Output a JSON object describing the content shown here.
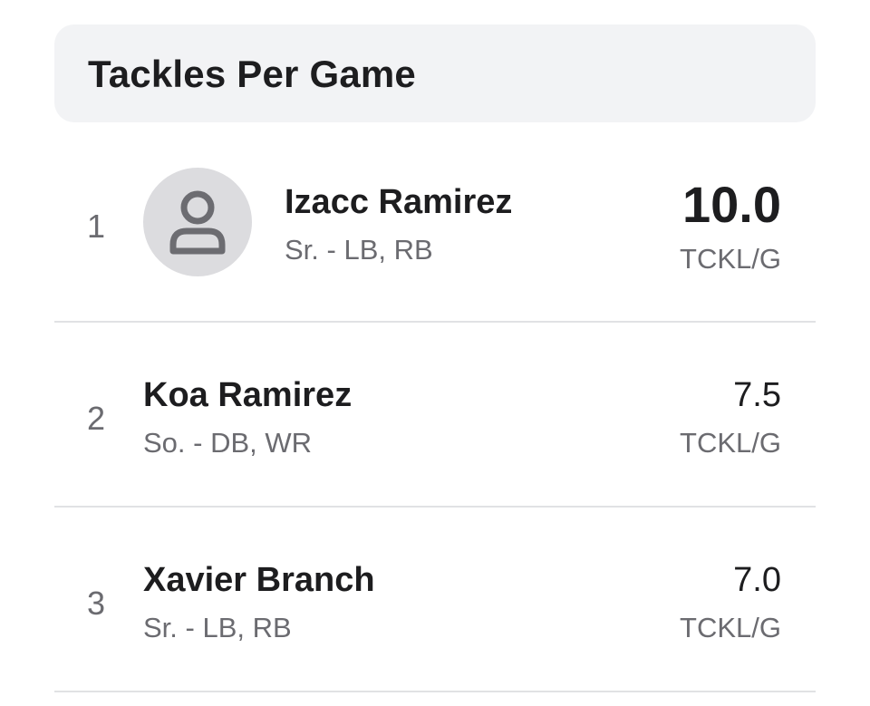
{
  "header": {
    "title": "Tackles Per Game"
  },
  "leaders": [
    {
      "rank": "1",
      "name": "Izacc Ramirez",
      "details": "Sr. - LB, RB",
      "value": "10.0",
      "unit": "TCKL/G",
      "avatar_icon": "person-icon"
    },
    {
      "rank": "2",
      "name": "Koa Ramirez",
      "details": "So. - DB, WR",
      "value": "7.5",
      "unit": "TCKL/G"
    },
    {
      "rank": "3",
      "name": "Xavier Branch",
      "details": "Sr. - LB, RB",
      "value": "7.0",
      "unit": "TCKL/G"
    }
  ]
}
